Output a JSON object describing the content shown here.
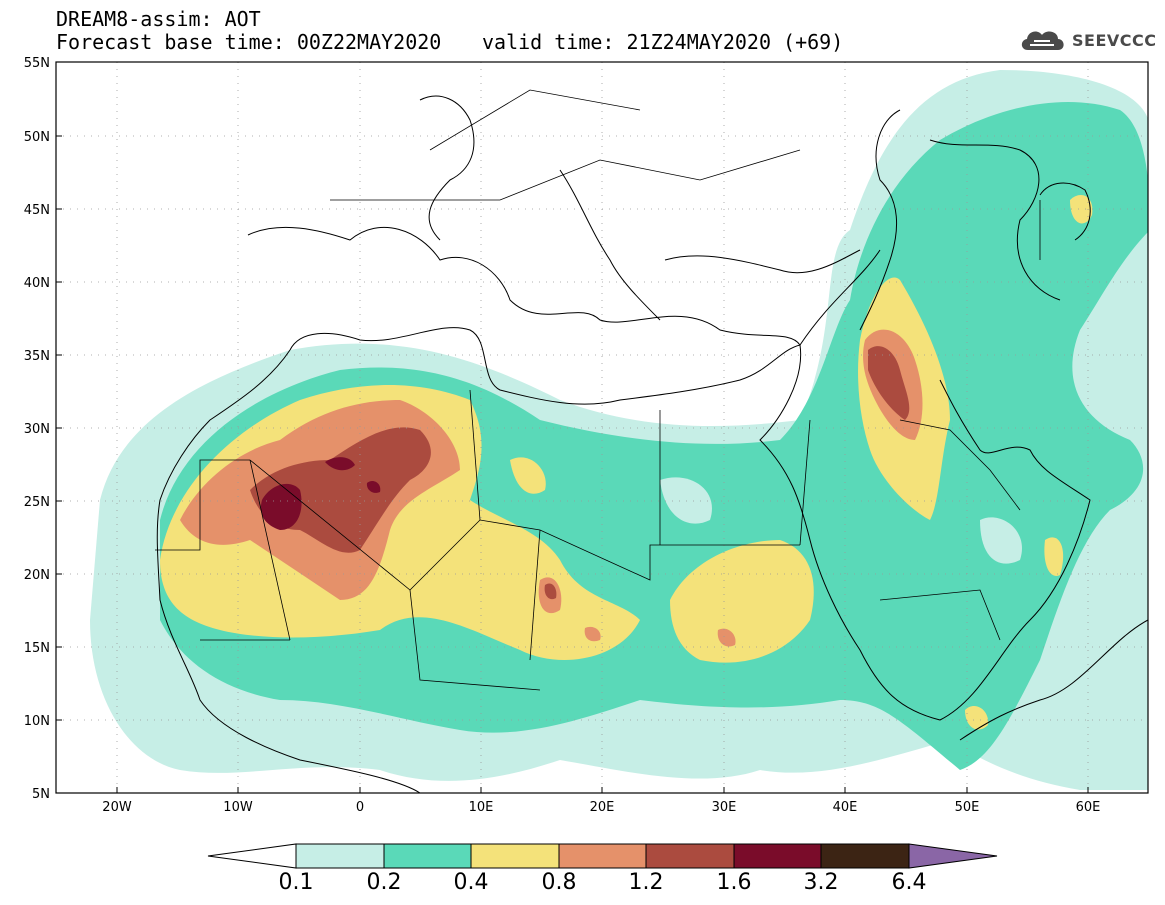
{
  "header": {
    "line1": "DREAM8-assim: AOT",
    "base_time": "Forecast base time: 00Z22MAY2020",
    "valid_time": "valid time: 21Z24MAY2020 (+69)"
  },
  "logo": {
    "text": "SEEVCCC",
    "icon": "cloud-icon"
  },
  "map": {
    "lon_labels": [
      "20W",
      "10W",
      "0",
      "10E",
      "20E",
      "30E",
      "40E",
      "50E",
      "60E"
    ],
    "lat_labels": [
      "55N",
      "50N",
      "45N",
      "40N",
      "35N",
      "30N",
      "25N",
      "20N",
      "15N",
      "10N",
      "5N"
    ]
  },
  "colorbar": {
    "labels": [
      "0.1",
      "0.2",
      "0.4",
      "0.8",
      "1.2",
      "1.6",
      "3.2",
      "6.4"
    ],
    "colors": [
      "#ffffff",
      "#c6eee6",
      "#5ad9b8",
      "#f4e27a",
      "#e5916a",
      "#ab4b3f",
      "#7a0c2a",
      "#3c2414",
      "#8a66a6"
    ]
  }
}
